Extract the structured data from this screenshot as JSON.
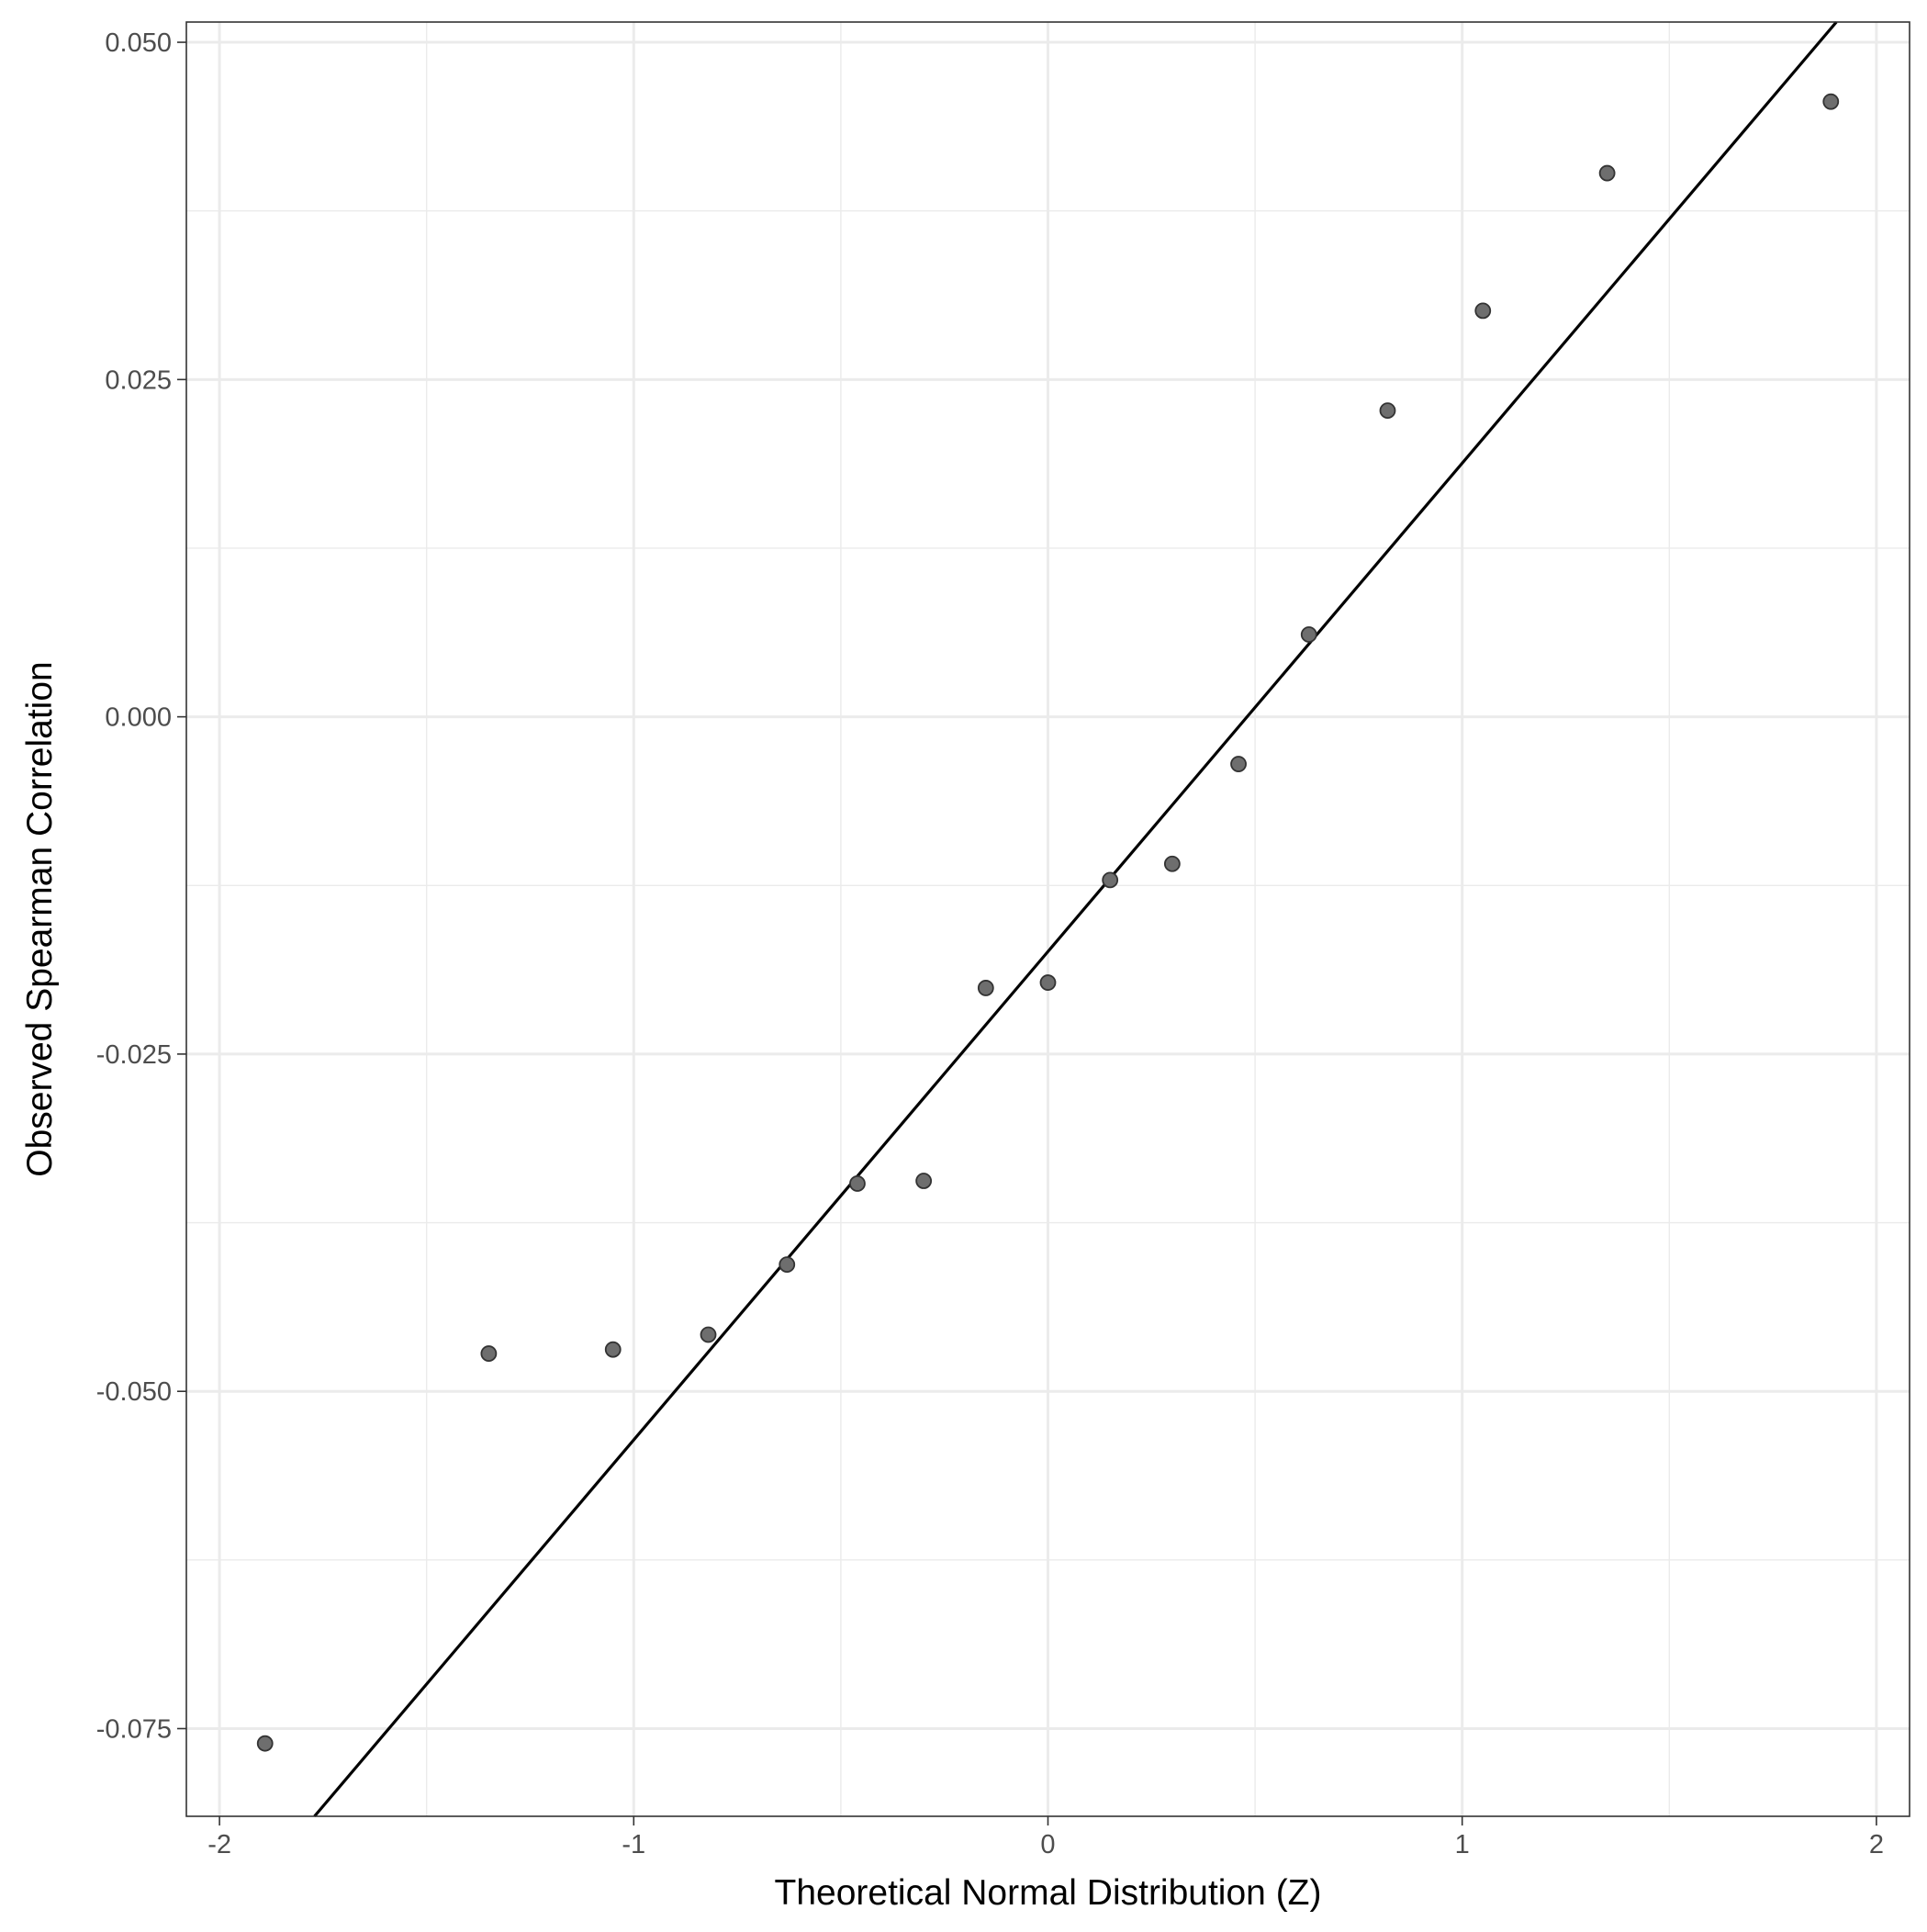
{
  "chart_data": {
    "type": "scatter",
    "title": "",
    "xlabel": "Theoretical Normal Distribution (Z)",
    "ylabel": "Observed Spearman Correlation",
    "xlim": [
      -2.08,
      2.08
    ],
    "ylim": [
      -0.0815,
      0.0515
    ],
    "x_ticks": [
      -2,
      -1,
      0,
      1,
      2
    ],
    "x_tick_labels": [
      "-2",
      "-1",
      "0",
      "1",
      "2"
    ],
    "y_ticks": [
      -0.075,
      -0.05,
      -0.025,
      0.0,
      0.025,
      0.05
    ],
    "y_tick_labels": [
      "-0.075",
      "-0.050",
      "-0.025",
      "0.000",
      "0.025",
      "0.050"
    ],
    "grid": true,
    "points": [
      {
        "x": -1.89,
        "y": -0.0761
      },
      {
        "x": -1.35,
        "y": -0.0472
      },
      {
        "x": -1.05,
        "y": -0.0469
      },
      {
        "x": -0.82,
        "y": -0.0458
      },
      {
        "x": -0.63,
        "y": -0.0406
      },
      {
        "x": -0.46,
        "y": -0.0346
      },
      {
        "x": -0.3,
        "y": -0.0344
      },
      {
        "x": -0.15,
        "y": -0.0201
      },
      {
        "x": 0.0,
        "y": -0.0197
      },
      {
        "x": 0.15,
        "y": -0.0121
      },
      {
        "x": 0.3,
        "y": -0.0109
      },
      {
        "x": 0.46,
        "y": -0.0035
      },
      {
        "x": 0.63,
        "y": 0.0061
      },
      {
        "x": 0.82,
        "y": 0.0227
      },
      {
        "x": 1.05,
        "y": 0.0301
      },
      {
        "x": 1.35,
        "y": 0.0403
      },
      {
        "x": 1.89,
        "y": 0.0456
      }
    ],
    "reference_line": {
      "intercept": -0.0174,
      "slope": 0.0362
    },
    "point_color": "#6e6e6e",
    "line_color": "#000000",
    "grid_color": "#ebebeb"
  }
}
